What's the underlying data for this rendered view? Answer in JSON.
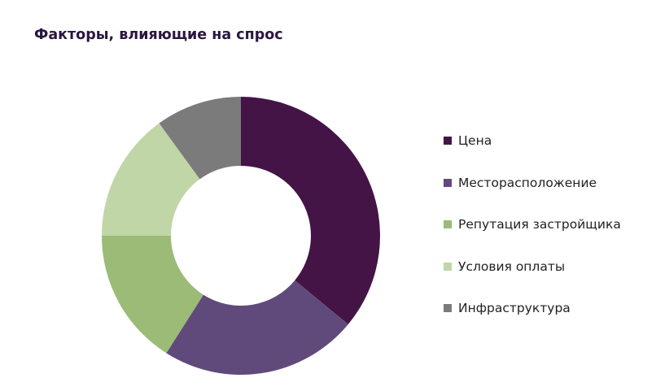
{
  "chart_data": {
    "type": "pie",
    "title": "Факторы, влияющие на спрос",
    "donut": true,
    "legend_position": "right",
    "categories": [
      "Цена",
      "Месторасположение",
      "Репутация застройщика",
      "Условия оплаты",
      "Инфраструктура"
    ],
    "values": [
      36,
      23,
      16,
      15,
      10
    ],
    "colors": [
      "#431445",
      "#604a7b",
      "#9bbb77",
      "#c0d6a6",
      "#7b7b7b"
    ]
  }
}
